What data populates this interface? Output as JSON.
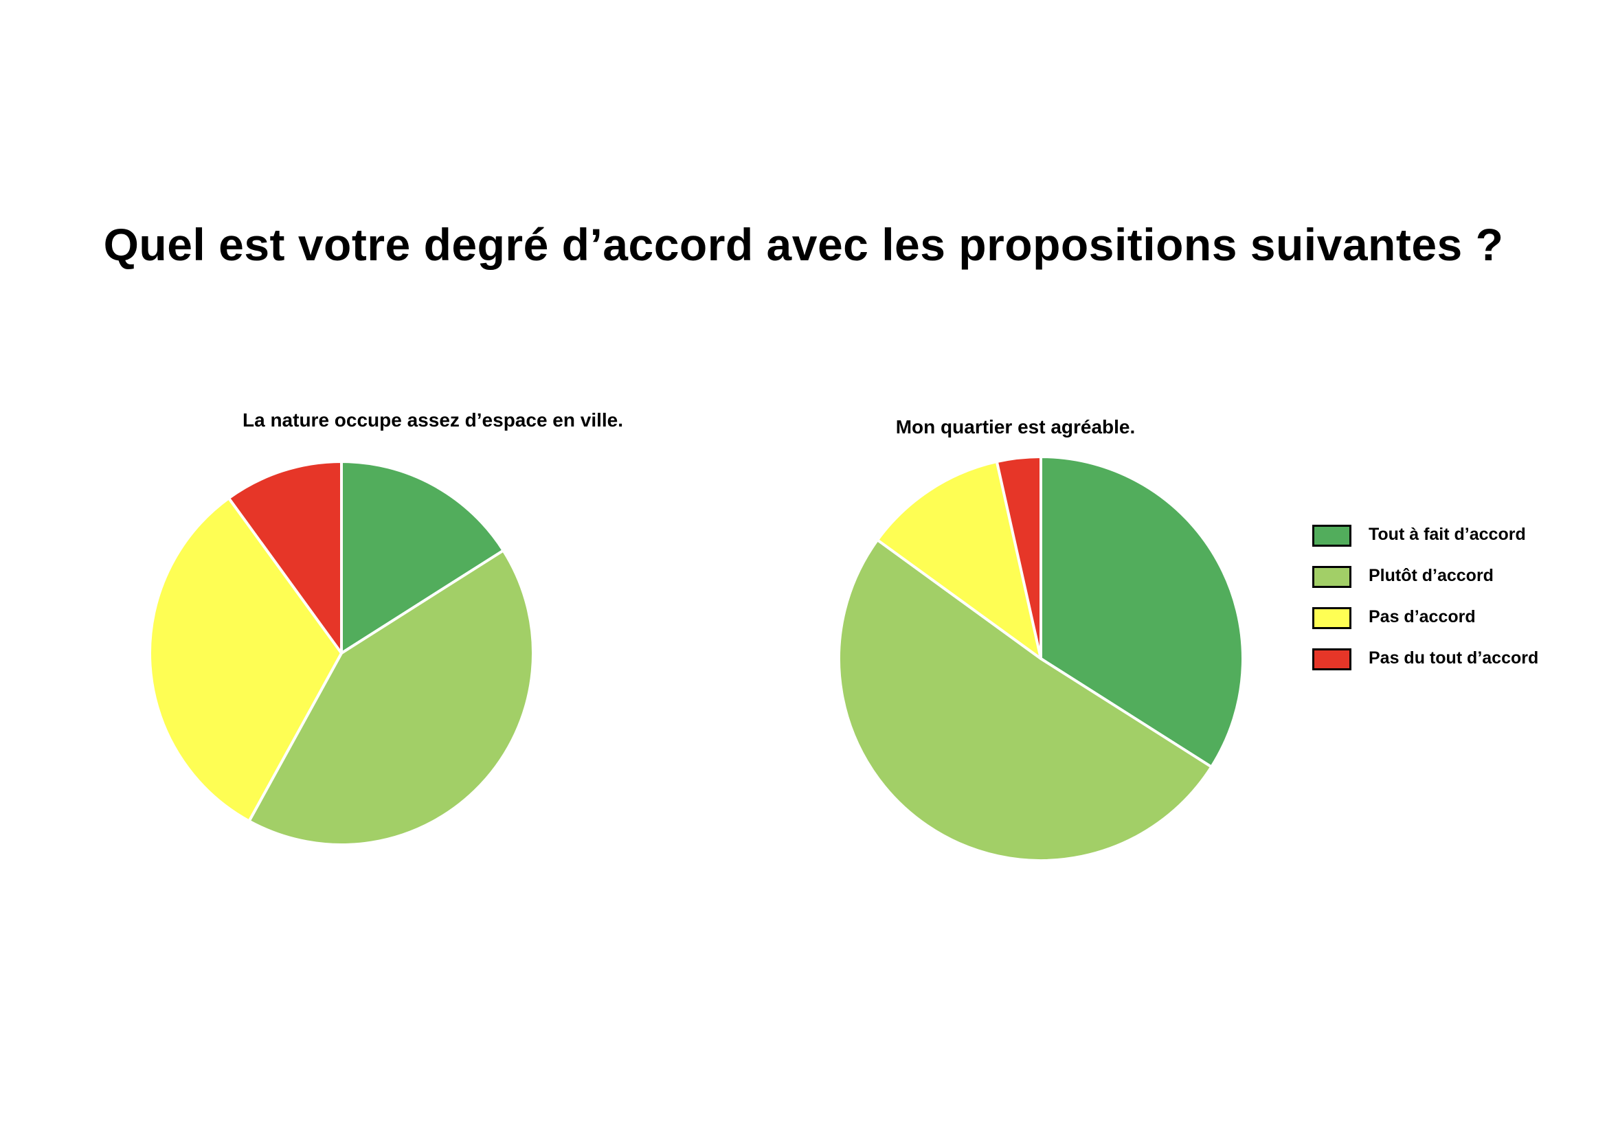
{
  "title": "Quel est votre degré d’accord avec les propositions suivantes ?",
  "legend": [
    {
      "label": "Tout à fait d’accord",
      "color": "#52ad5c"
    },
    {
      "label": "Plutôt d’accord",
      "color": "#a2cf67"
    },
    {
      "label": "Pas d’accord",
      "color": "#fefe54"
    },
    {
      "label": "Pas du tout d’accord",
      "color": "#e63628"
    }
  ],
  "chart_data": [
    {
      "type": "pie",
      "title": "La nature occupe assez d’espace en ville.",
      "categories": [
        "Tout à fait d’accord",
        "Plutôt d’accord",
        "Pas d’accord",
        "Pas du tout d’accord"
      ],
      "values": [
        16,
        42,
        32,
        10
      ],
      "colors": [
        "#52ad5c",
        "#a2cf67",
        "#fefe54",
        "#e63628"
      ],
      "legend_position": "right"
    },
    {
      "type": "pie",
      "title": "Mon quartier est agréable.",
      "categories": [
        "Tout à fait d’accord",
        "Plutôt d’accord",
        "Pas d’accord",
        "Pas du tout d’accord"
      ],
      "values": [
        34,
        51,
        11.5,
        3.5
      ],
      "colors": [
        "#52ad5c",
        "#a2cf67",
        "#fefe54",
        "#e63628"
      ],
      "legend_position": "right"
    }
  ]
}
